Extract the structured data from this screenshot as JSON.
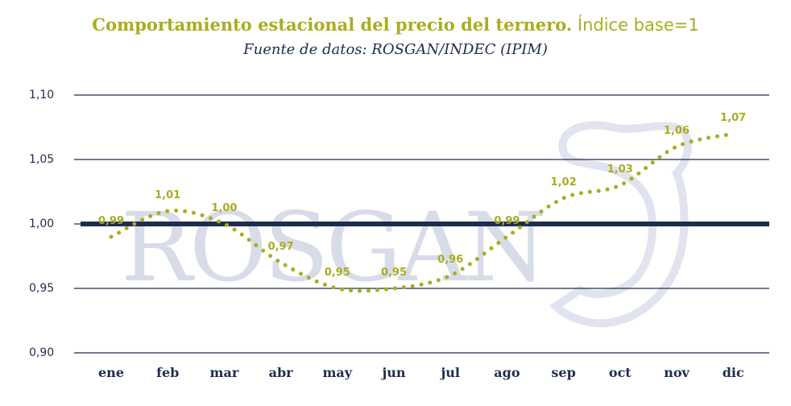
{
  "title_bold": "Comportamiento estacional del precio del ternero.",
  "title_light": "Índice base=1",
  "subtitle": "Fuente de datos: ROSGAN/INDEC (IPIM)",
  "watermark": "ROSGAN",
  "colors": {
    "series": "#a9ad1e",
    "axis": "#1e2d4e",
    "watermark": "#bfc6dc"
  },
  "chart_data": {
    "type": "line",
    "line_style": "dotted",
    "categories": [
      "ene",
      "feb",
      "mar",
      "abr",
      "may",
      "jun",
      "jul",
      "ago",
      "sep",
      "oct",
      "nov",
      "dic"
    ],
    "values": [
      0.99,
      1.01,
      1.0,
      0.97,
      0.95,
      0.95,
      0.96,
      0.99,
      1.02,
      1.03,
      1.06,
      1.07
    ],
    "labels": [
      "0,99",
      "1,01",
      "1,00",
      "0,97",
      "0,95",
      "0,95",
      "0,96",
      "0,99",
      "1,02",
      "1,03",
      "1,06",
      "1,07"
    ],
    "ylim": [
      0.9,
      1.1
    ],
    "yticks": [
      1.1,
      1.05,
      1.0,
      0.95,
      0.9
    ],
    "ytick_labels": [
      "1,10",
      "1,05",
      "1,00",
      "0,95",
      "0,90"
    ],
    "reference_line": 1.0,
    "grid": true,
    "xlabel": "",
    "ylabel": ""
  }
}
